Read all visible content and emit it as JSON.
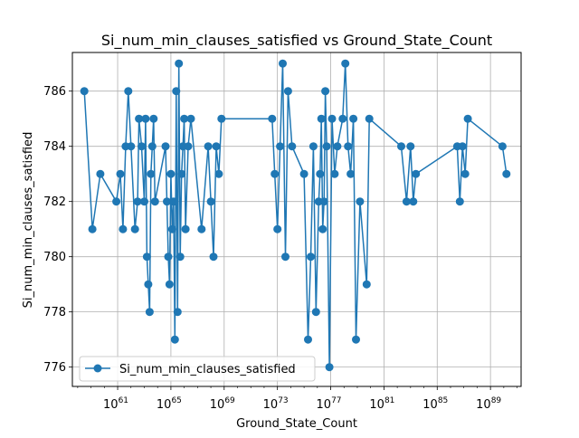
{
  "chart_data": {
    "type": "line",
    "title": "Si_num_min_clauses_satisfied vs Ground_State_Count",
    "xlabel": "Ground_State_Count",
    "ylabel": "Si_num_min_clauses_satisfied",
    "xscale": "log",
    "x_exponent_range": [
      57.6,
      91.3
    ],
    "ylim": [
      775.3,
      787.4
    ],
    "x_tick_exponents": [
      61,
      65,
      69,
      73,
      77,
      81,
      85,
      89
    ],
    "y_ticks": [
      776,
      778,
      780,
      782,
      784,
      786
    ],
    "grid": true,
    "legend_position": "lower-left",
    "colors": {
      "series": "#1f77b4",
      "grid": "#b0b0b0"
    },
    "series": [
      {
        "name": "Si_num_min_clauses_satisfied",
        "x_exponent": [
          58.5,
          59.1,
          59.7,
          60.9,
          61.2,
          61.4,
          61.6,
          61.8,
          62.0,
          62.3,
          62.5,
          62.6,
          62.8,
          63.0,
          63.1,
          63.2,
          63.3,
          63.4,
          63.5,
          63.6,
          63.7,
          63.8,
          64.6,
          64.7,
          64.8,
          64.9,
          65.0,
          65.1,
          65.2,
          65.3,
          65.4,
          65.5,
          65.6,
          65.7,
          65.8,
          65.9,
          66.0,
          66.1,
          66.3,
          66.5,
          67.3,
          67.8,
          68.0,
          68.2,
          68.4,
          68.6,
          68.8,
          72.6,
          72.8,
          73.0,
          73.2,
          73.4,
          73.6,
          73.8,
          74.1,
          75.0,
          75.3,
          75.5,
          75.7,
          75.9,
          76.1,
          76.2,
          76.3,
          76.4,
          76.5,
          76.6,
          76.7,
          76.9,
          77.1,
          77.3,
          77.5,
          77.9,
          78.1,
          78.3,
          78.5,
          78.7,
          78.9,
          79.2,
          79.7,
          79.9,
          82.3,
          82.7,
          83.0,
          83.2,
          83.4,
          86.5,
          86.7,
          86.9,
          87.1,
          87.3,
          89.9,
          90.2
        ],
        "y": [
          786,
          781,
          783,
          782,
          783,
          781,
          784,
          786,
          784,
          781,
          782,
          785,
          784,
          782,
          785,
          780,
          779,
          778,
          783,
          784,
          785,
          782,
          784,
          782,
          780,
          779,
          783,
          781,
          782,
          777,
          786,
          778,
          787,
          780,
          783,
          784,
          785,
          781,
          784,
          785,
          781,
          784,
          782,
          780,
          784,
          783,
          785,
          785,
          783,
          781,
          784,
          787,
          780,
          786,
          784,
          783,
          777,
          780,
          784,
          778,
          782,
          783,
          785,
          781,
          782,
          786,
          784,
          776,
          785,
          783,
          784,
          785,
          787,
          784,
          783,
          785,
          777,
          782,
          779,
          785,
          784,
          782,
          784,
          782,
          783,
          784,
          782,
          784,
          783,
          785,
          784,
          783
        ],
        "point_order": [
          0,
          1,
          2,
          3,
          4,
          5,
          6,
          7,
          8,
          9,
          10,
          11,
          12,
          13,
          14,
          15,
          16,
          17,
          18,
          19,
          20,
          21,
          22,
          23,
          24,
          25,
          26,
          27,
          28,
          29,
          30,
          31,
          32,
          33,
          34,
          35,
          36,
          37,
          38,
          39,
          40,
          41,
          42,
          43,
          44,
          45,
          46,
          47,
          48,
          49,
          50,
          51,
          52,
          53,
          54,
          55,
          56,
          57,
          58,
          59,
          60,
          61,
          62,
          63,
          64,
          65,
          66,
          67,
          68,
          69,
          70,
          71,
          72,
          73,
          74,
          75,
          76,
          77,
          78,
          79,
          80,
          81,
          82,
          83,
          84,
          85,
          86,
          87,
          88,
          89,
          90,
          91
        ]
      }
    ]
  }
}
